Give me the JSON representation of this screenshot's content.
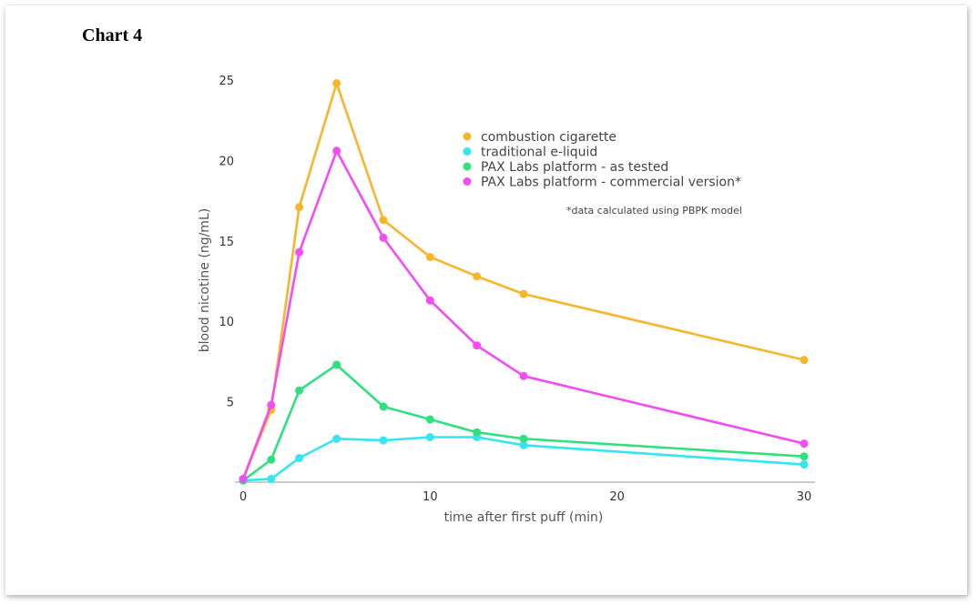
{
  "doc_title": "Chart 4",
  "chart_data": {
    "type": "line",
    "xlabel": "time after first puff (min)",
    "ylabel": "blood nicotine (ng/mL)",
    "xlim": [
      0,
      30
    ],
    "ylim": [
      0,
      25
    ],
    "x_ticks": [
      0,
      10,
      20,
      30
    ],
    "y_ticks": [
      5,
      10,
      15,
      20,
      25
    ],
    "grid": false,
    "legend_position": "top-right",
    "note": "*data calculated using PBPK model",
    "x": [
      0,
      1.5,
      3,
      5,
      7.5,
      10,
      12.5,
      15,
      30
    ],
    "series": [
      {
        "name": "combustion cigarette",
        "color": "#F7B52C",
        "values": [
          0.2,
          4.5,
          17.1,
          24.8,
          16.3,
          14.0,
          12.8,
          11.7,
          7.6
        ]
      },
      {
        "name": "traditional e-liquid",
        "color": "#33E6F2",
        "values": [
          0.1,
          0.2,
          1.5,
          2.7,
          2.6,
          2.8,
          2.8,
          2.3,
          1.1
        ]
      },
      {
        "name": "PAX Labs platform - as tested",
        "color": "#2EE07E",
        "values": [
          0.1,
          1.4,
          5.7,
          7.3,
          4.7,
          3.9,
          3.1,
          2.7,
          1.6
        ]
      },
      {
        "name": "PAX Labs platform - commercial version*",
        "color": "#F24CF2",
        "values": [
          0.2,
          4.8,
          14.3,
          20.6,
          15.2,
          11.3,
          8.5,
          6.6,
          2.4
        ]
      }
    ]
  }
}
